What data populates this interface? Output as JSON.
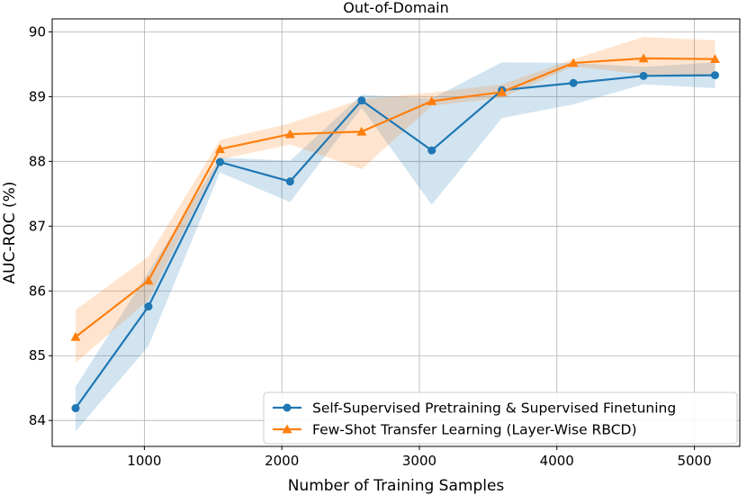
{
  "chart_data": {
    "type": "line",
    "title": "Out-of-Domain",
    "xlabel": "Number of Training Samples",
    "ylabel": "AUC-ROC (%)",
    "xlim": [
      330,
      5330
    ],
    "ylim": [
      83.6,
      90.2
    ],
    "xticks": [
      1000,
      2000,
      3000,
      4000,
      5000
    ],
    "yticks": [
      84,
      85,
      86,
      87,
      88,
      89,
      90
    ],
    "grid": true,
    "legend_position": "lower-right",
    "x": [
      500,
      1030,
      1550,
      2060,
      2580,
      3090,
      3600,
      4120,
      4630,
      5150
    ],
    "series": [
      {
        "name": "Self-Supervised Pretraining & Supervised Finetuning",
        "color": "#1f77b4",
        "marker": "circle",
        "values": [
          84.19,
          85.76,
          87.99,
          87.69,
          88.94,
          88.17,
          89.1,
          89.21,
          89.32,
          89.33
        ],
        "lower": [
          83.83,
          85.15,
          87.83,
          87.37,
          88.83,
          87.33,
          88.67,
          88.88,
          89.19,
          89.13
        ],
        "upper": [
          84.52,
          86.29,
          88.06,
          88.01,
          89.03,
          88.97,
          89.53,
          89.52,
          89.46,
          89.53
        ]
      },
      {
        "name": "Few-Shot Transfer Learning (Layer-Wise RBCD)",
        "color": "#ff7f0e",
        "marker": "triangle",
        "values": [
          85.29,
          86.16,
          88.19,
          88.42,
          88.46,
          88.93,
          89.07,
          89.52,
          89.59,
          89.58
        ],
        "lower": [
          84.89,
          85.86,
          88.03,
          88.26,
          87.88,
          88.86,
          88.98,
          89.47,
          89.34,
          89.32
        ],
        "upper": [
          85.71,
          86.53,
          88.33,
          88.59,
          88.96,
          89.06,
          89.19,
          89.58,
          89.92,
          89.87
        ]
      }
    ]
  }
}
